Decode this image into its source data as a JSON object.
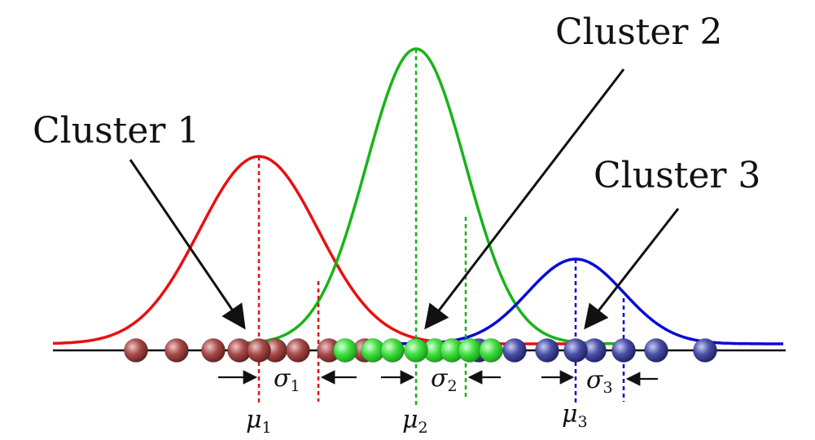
{
  "diagram": {
    "clusters": [
      {
        "label": "Cluster 1",
        "mu_symbol": "μ",
        "mu_sub": "1",
        "sigma_symbol": "σ",
        "sigma_sub": "1",
        "curve_color": "#e81010",
        "ball_color": "#8a2f2f",
        "ball_highlight": "#e8b0b0"
      },
      {
        "label": "Cluster 2",
        "mu_symbol": "μ",
        "mu_sub": "2",
        "sigma_symbol": "σ",
        "sigma_sub": "2",
        "curve_color": "#19b319",
        "ball_color": "#1fcf1f",
        "ball_highlight": "#c8ffc8"
      },
      {
        "label": "Cluster 3",
        "mu_symbol": "μ",
        "mu_sub": "3",
        "sigma_symbol": "σ",
        "sigma_sub": "3",
        "curve_color": "#0a0ad6",
        "ball_color": "#2a2f8a",
        "ball_highlight": "#b8bce8"
      }
    ],
    "axis_color": "#111111",
    "arrow_color": "#111111"
  }
}
